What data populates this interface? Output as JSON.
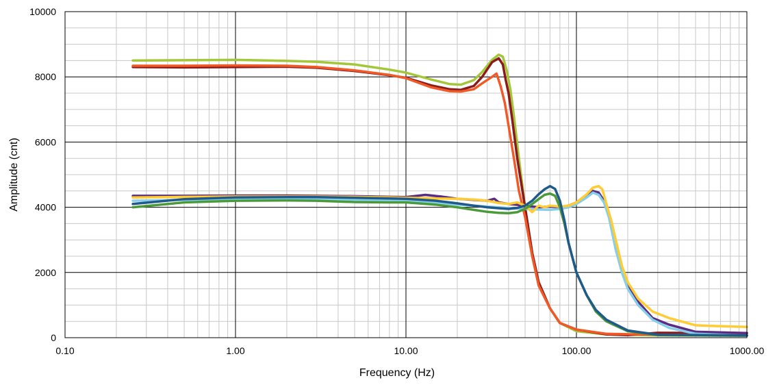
{
  "chart_data": {
    "type": "line",
    "title": "",
    "xlabel": "Frequency (Hz)",
    "ylabel": "Amplitude (cnt)",
    "x_scale": "log",
    "xlim": [
      0.1,
      1000
    ],
    "ylim": [
      0,
      10000
    ],
    "x_ticks": [
      0.1,
      1,
      10,
      100,
      1000
    ],
    "x_tick_labels": [
      "0.10",
      "1.00",
      "10.00",
      "100.00",
      "1000.00"
    ],
    "y_ticks": [
      0,
      2000,
      4000,
      6000,
      8000,
      10000
    ],
    "y_tick_labels": [
      "0",
      "2000",
      "4000",
      "6000",
      "8000",
      "10000"
    ],
    "grid": true,
    "minor_grid": true,
    "legend": "none",
    "series": [
      {
        "color": "#a4c639",
        "points": [
          [
            0.25,
            8500
          ],
          [
            0.5,
            8510
          ],
          [
            1.0,
            8520
          ],
          [
            2.0,
            8490
          ],
          [
            3.0,
            8460
          ],
          [
            5.0,
            8380
          ],
          [
            8.0,
            8220
          ],
          [
            10.0,
            8130
          ],
          [
            14.0,
            7920
          ],
          [
            18.0,
            7780
          ],
          [
            21.0,
            7760
          ],
          [
            25.0,
            7900
          ],
          [
            28.0,
            8150
          ],
          [
            32.0,
            8520
          ],
          [
            35.0,
            8680
          ],
          [
            37.0,
            8620
          ],
          [
            39.0,
            8200
          ],
          [
            41.0,
            7600
          ],
          [
            43.0,
            6800
          ],
          [
            46.0,
            5500
          ],
          [
            50.0,
            4000
          ],
          [
            55.0,
            2600
          ],
          [
            60.0,
            1700
          ],
          [
            70.0,
            900
          ],
          [
            80.0,
            450
          ],
          [
            100.0,
            200
          ],
          [
            150.0,
            100
          ],
          [
            300.0,
            70
          ],
          [
            1000.0,
            60
          ]
        ]
      },
      {
        "color": "#8b1a1a",
        "points": [
          [
            0.25,
            8300
          ],
          [
            0.5,
            8290
          ],
          [
            1.0,
            8300
          ],
          [
            2.0,
            8310
          ],
          [
            3.0,
            8280
          ],
          [
            5.0,
            8180
          ],
          [
            8.0,
            8050
          ],
          [
            10.0,
            7970
          ],
          [
            14.0,
            7740
          ],
          [
            18.0,
            7620
          ],
          [
            21.0,
            7600
          ],
          [
            25.0,
            7720
          ],
          [
            28.0,
            8000
          ],
          [
            32.0,
            8450
          ],
          [
            35.0,
            8570
          ],
          [
            37.0,
            8380
          ],
          [
            38.5,
            7900
          ],
          [
            40.0,
            7500
          ],
          [
            42.0,
            6700
          ],
          [
            45.0,
            5500
          ],
          [
            50.0,
            4000
          ],
          [
            55.0,
            2600
          ],
          [
            60.0,
            1700
          ],
          [
            70.0,
            900
          ],
          [
            80.0,
            450
          ],
          [
            100.0,
            250
          ],
          [
            150.0,
            100
          ],
          [
            200.0,
            80
          ],
          [
            300.0,
            150
          ],
          [
            1000.0,
            140
          ]
        ]
      },
      {
        "color": "#f05a28",
        "points": [
          [
            0.25,
            8340
          ],
          [
            0.5,
            8340
          ],
          [
            1.0,
            8350
          ],
          [
            2.0,
            8340
          ],
          [
            3.0,
            8300
          ],
          [
            5.0,
            8200
          ],
          [
            8.0,
            8060
          ],
          [
            10.0,
            7960
          ],
          [
            14.0,
            7680
          ],
          [
            18.0,
            7560
          ],
          [
            21.0,
            7550
          ],
          [
            25.0,
            7620
          ],
          [
            28.0,
            7800
          ],
          [
            32.0,
            8000
          ],
          [
            34.0,
            8100
          ],
          [
            36.0,
            7700
          ],
          [
            38.0,
            7200
          ],
          [
            40.0,
            6500
          ],
          [
            43.0,
            5500
          ],
          [
            46.0,
            4500
          ],
          [
            50.0,
            3700
          ],
          [
            55.0,
            2500
          ],
          [
            60.0,
            1600
          ],
          [
            70.0,
            900
          ],
          [
            80.0,
            450
          ],
          [
            100.0,
            250
          ],
          [
            150.0,
            120
          ],
          [
            300.0,
            90
          ],
          [
            1000.0,
            80
          ]
        ]
      },
      {
        "color": "#5a2d82",
        "points": [
          [
            0.25,
            4350
          ],
          [
            0.5,
            4350
          ],
          [
            1.0,
            4360
          ],
          [
            2.0,
            4360
          ],
          [
            3.0,
            4350
          ],
          [
            5.0,
            4340
          ],
          [
            8.0,
            4320
          ],
          [
            10.0,
            4310
          ],
          [
            13.0,
            4380
          ],
          [
            16.0,
            4330
          ],
          [
            20.0,
            4260
          ],
          [
            25.0,
            4230
          ],
          [
            30.0,
            4200
          ],
          [
            33.0,
            4260
          ],
          [
            35.0,
            4150
          ],
          [
            40.0,
            4100
          ],
          [
            50.0,
            4050
          ],
          [
            60.0,
            4000
          ],
          [
            70.0,
            4020
          ],
          [
            80.0,
            4000
          ],
          [
            90.0,
            4050
          ],
          [
            100.0,
            4150
          ],
          [
            115.0,
            4350
          ],
          [
            125.0,
            4500
          ],
          [
            135.0,
            4450
          ],
          [
            145.0,
            4200
          ],
          [
            155.0,
            3800
          ],
          [
            170.0,
            2800
          ],
          [
            185.0,
            2100
          ],
          [
            200.0,
            1600
          ],
          [
            230.0,
            1100
          ],
          [
            280.0,
            600
          ],
          [
            350.0,
            400
          ],
          [
            500.0,
            180
          ],
          [
            1000.0,
            140
          ]
        ]
      },
      {
        "color": "#87ceeb",
        "points": [
          [
            0.25,
            4200
          ],
          [
            0.5,
            4230
          ],
          [
            1.0,
            4250
          ],
          [
            2.0,
            4250
          ],
          [
            3.0,
            4240
          ],
          [
            5.0,
            4230
          ],
          [
            8.0,
            4220
          ],
          [
            10.0,
            4200
          ],
          [
            15.0,
            4150
          ],
          [
            20.0,
            4080
          ],
          [
            25.0,
            4050
          ],
          [
            30.0,
            4020
          ],
          [
            40.0,
            3980
          ],
          [
            50.0,
            3950
          ],
          [
            60.0,
            3930
          ],
          [
            70.0,
            3920
          ],
          [
            80.0,
            3950
          ],
          [
            90.0,
            4000
          ],
          [
            100.0,
            4100
          ],
          [
            115.0,
            4300
          ],
          [
            125.0,
            4450
          ],
          [
            135.0,
            4380
          ],
          [
            145.0,
            4150
          ],
          [
            155.0,
            3700
          ],
          [
            170.0,
            2700
          ],
          [
            185.0,
            2000
          ],
          [
            200.0,
            1500
          ],
          [
            230.0,
            1000
          ],
          [
            280.0,
            550
          ],
          [
            350.0,
            300
          ],
          [
            500.0,
            120
          ],
          [
            1000.0,
            60
          ]
        ]
      },
      {
        "color": "#ffcc33",
        "points": [
          [
            0.25,
            4300
          ],
          [
            0.5,
            4320
          ],
          [
            1.0,
            4330
          ],
          [
            2.0,
            4330
          ],
          [
            3.0,
            4330
          ],
          [
            5.0,
            4320
          ],
          [
            8.0,
            4300
          ],
          [
            10.0,
            4290
          ],
          [
            15.0,
            4270
          ],
          [
            20.0,
            4260
          ],
          [
            25.0,
            4240
          ],
          [
            30.0,
            4200
          ],
          [
            35.0,
            4130
          ],
          [
            40.0,
            4100
          ],
          [
            45.0,
            4150
          ],
          [
            50.0,
            4050
          ],
          [
            55.0,
            3850
          ],
          [
            60.0,
            4050
          ],
          [
            65.0,
            4000
          ],
          [
            70.0,
            4050
          ],
          [
            80.0,
            4020
          ],
          [
            90.0,
            4050
          ],
          [
            100.0,
            4150
          ],
          [
            115.0,
            4400
          ],
          [
            125.0,
            4600
          ],
          [
            135.0,
            4650
          ],
          [
            142.0,
            4550
          ],
          [
            150.0,
            4100
          ],
          [
            160.0,
            3600
          ],
          [
            170.0,
            3000
          ],
          [
            185.0,
            2200
          ],
          [
            200.0,
            1700
          ],
          [
            230.0,
            1200
          ],
          [
            280.0,
            800
          ],
          [
            350.0,
            600
          ],
          [
            500.0,
            380
          ],
          [
            700.0,
            350
          ],
          [
            1000.0,
            330
          ]
        ]
      },
      {
        "color": "#4a9a3a",
        "points": [
          [
            0.25,
            4000
          ],
          [
            0.5,
            4150
          ],
          [
            1.0,
            4200
          ],
          [
            2.0,
            4210
          ],
          [
            3.0,
            4200
          ],
          [
            5.0,
            4160
          ],
          [
            8.0,
            4150
          ],
          [
            10.0,
            4150
          ],
          [
            15.0,
            4080
          ],
          [
            20.0,
            4000
          ],
          [
            25.0,
            3920
          ],
          [
            30.0,
            3860
          ],
          [
            35.0,
            3830
          ],
          [
            40.0,
            3820
          ],
          [
            45.0,
            3850
          ],
          [
            50.0,
            3950
          ],
          [
            55.0,
            4100
          ],
          [
            60.0,
            4250
          ],
          [
            65.0,
            4380
          ],
          [
            70.0,
            4420
          ],
          [
            75.0,
            4350
          ],
          [
            80.0,
            4000
          ],
          [
            85.0,
            3500
          ],
          [
            90.0,
            2900
          ],
          [
            100.0,
            2000
          ],
          [
            115.0,
            1300
          ],
          [
            130.0,
            800
          ],
          [
            150.0,
            500
          ],
          [
            200.0,
            200
          ],
          [
            300.0,
            80
          ],
          [
            1000.0,
            60
          ]
        ]
      },
      {
        "color": "#1f5a8a",
        "points": [
          [
            0.25,
            4100
          ],
          [
            0.5,
            4250
          ],
          [
            1.0,
            4300
          ],
          [
            2.0,
            4310
          ],
          [
            3.0,
            4310
          ],
          [
            5.0,
            4290
          ],
          [
            8.0,
            4270
          ],
          [
            10.0,
            4260
          ],
          [
            15.0,
            4200
          ],
          [
            20.0,
            4120
          ],
          [
            25.0,
            4050
          ],
          [
            30.0,
            4000
          ],
          [
            35.0,
            3970
          ],
          [
            40.0,
            3950
          ],
          [
            45.0,
            3980
          ],
          [
            50.0,
            4050
          ],
          [
            55.0,
            4200
          ],
          [
            60.0,
            4400
          ],
          [
            65.0,
            4550
          ],
          [
            70.0,
            4650
          ],
          [
            75.0,
            4560
          ],
          [
            80.0,
            4200
          ],
          [
            85.0,
            3600
          ],
          [
            90.0,
            2900
          ],
          [
            100.0,
            2000
          ],
          [
            115.0,
            1300
          ],
          [
            130.0,
            850
          ],
          [
            150.0,
            550
          ],
          [
            200.0,
            220
          ],
          [
            300.0,
            90
          ],
          [
            1000.0,
            70
          ]
        ]
      }
    ]
  }
}
